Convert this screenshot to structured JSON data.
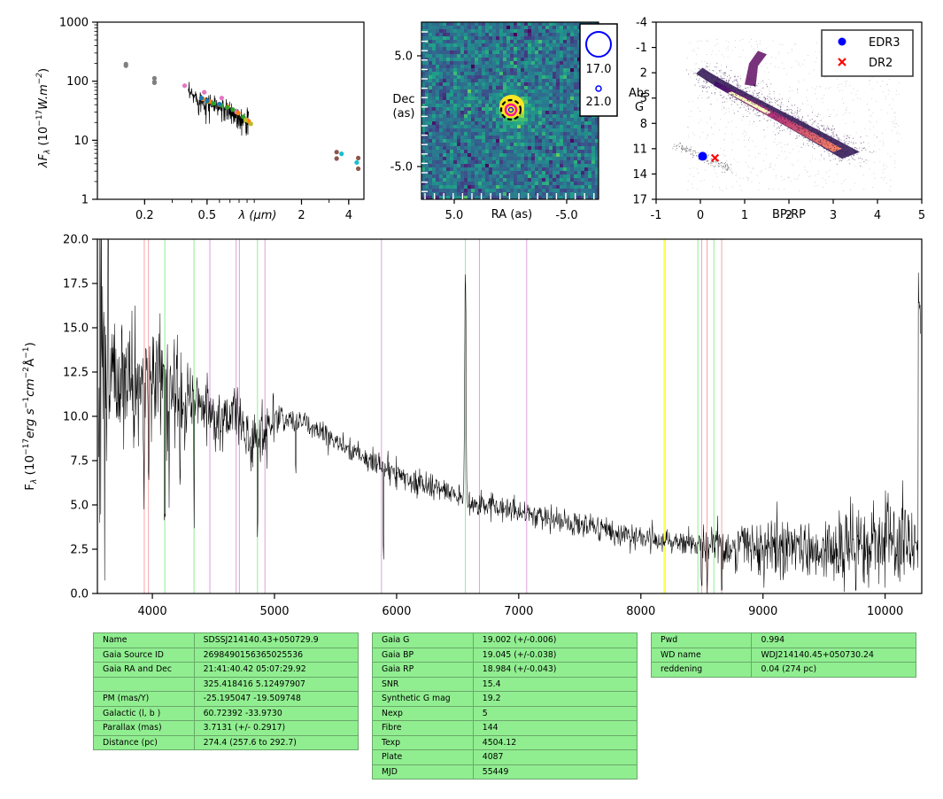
{
  "chart_data": [
    {
      "type": "scatter",
      "panel": "sed",
      "xlabel": "λ (μm)",
      "ylabel": "λF_λ (10^-17 W.m^-2)",
      "x_scale": "log",
      "y_scale": "log",
      "ylim": [
        1,
        1000
      ],
      "xlim": [
        0.1,
        5
      ],
      "x_ticks": [
        "0.2",
        "0.5",
        "2",
        "4"
      ],
      "y_ticks": [
        "1",
        "10",
        "100",
        "1000"
      ],
      "series": [
        {
          "color": "#808080",
          "points": [
            [
              0.152,
              195
            ],
            [
              0.152,
              183
            ],
            [
              0.231,
              112
            ],
            [
              0.231,
              97
            ],
            [
              0.231,
              94
            ]
          ]
        },
        {
          "color": "#e377c2",
          "points": [
            [
              0.36,
              84
            ],
            [
              0.48,
              65
            ],
            [
              0.62,
              52
            ],
            [
              0.77,
              30
            ],
            [
              0.9,
              22
            ]
          ]
        },
        {
          "color": "#ff7f0e",
          "points": [
            [
              0.47,
              50
            ],
            [
              0.52,
              45
            ],
            [
              0.6,
              40
            ],
            [
              0.68,
              37
            ],
            [
              0.79,
              29
            ],
            [
              0.92,
              21
            ]
          ]
        },
        {
          "color": "#2ca02c",
          "points": [
            [
              0.5,
              46
            ],
            [
              0.55,
              42
            ],
            [
              0.62,
              39
            ],
            [
              0.67,
              36
            ],
            [
              0.73,
              33
            ],
            [
              0.85,
              25
            ]
          ]
        },
        {
          "color": "#1f77b4",
          "points": [
            [
              0.46,
              52
            ],
            [
              0.5,
              47
            ],
            [
              0.6,
              41
            ]
          ]
        },
        {
          "color": "#bcbd22",
          "points": [
            [
              0.88,
              22
            ],
            [
              0.95,
              19
            ]
          ]
        },
        {
          "color": "#8c564b",
          "points": [
            [
              3.35,
              6.3
            ],
            [
              3.35,
              4.9
            ],
            [
              4.6,
              5.0
            ],
            [
              4.6,
              3.3
            ]
          ]
        },
        {
          "color": "#17becf",
          "points": [
            [
              3.6,
              5.9
            ],
            [
              4.5,
              4.2
            ]
          ]
        }
      ],
      "spectrum_segment": {
        "color": "#000000",
        "x_range": [
          0.38,
          0.92
        ]
      }
    },
    {
      "type": "heatmap",
      "panel": "image",
      "xlabel": "RA (as)",
      "ylabel": "Dec\n(as)",
      "x_ticks": [
        "5.0",
        "-5.0"
      ],
      "y_ticks": [
        "5.0",
        "-5.0"
      ],
      "legend": [
        {
          "label": "17.0",
          "marker": "large-blue-circle"
        },
        {
          "label": "21.0",
          "marker": "small-blue-circle"
        }
      ],
      "colormap": "viridis"
    },
    {
      "type": "scatter",
      "panel": "hr_diagram",
      "xlabel": "BP-RP",
      "ylabel": "Abs\nG",
      "xlim": [
        -1,
        5
      ],
      "ylim": [
        17,
        -4
      ],
      "x_ticks": [
        "-1",
        "0",
        "1",
        "2",
        "3",
        "4",
        "5"
      ],
      "y_ticks": [
        "-4",
        "-1",
        "2",
        "5",
        "8",
        "11",
        "14",
        "17"
      ],
      "series": [
        {
          "name": "EDR3",
          "color": "#0000ff",
          "marker": "circle",
          "x": [
            0.05
          ],
          "y": [
            11.9
          ]
        },
        {
          "name": "DR2",
          "color": "#ff0000",
          "marker": "x",
          "x": [
            0.33
          ],
          "y": [
            12.1
          ]
        }
      ],
      "legend_position": "top-right"
    },
    {
      "type": "line",
      "panel": "spectrum",
      "xlabel": "",
      "ylabel": "F_λ (10^-17 erg s^-1 cm^-2 Å^-1)",
      "xlim": [
        3550,
        10300
      ],
      "ylim": [
        0,
        20
      ],
      "x_ticks": [
        "4000",
        "5000",
        "6000",
        "7000",
        "8000",
        "9000",
        "10000"
      ],
      "y_ticks": [
        "0.0",
        "2.5",
        "5.0",
        "7.5",
        "10.0",
        "12.5",
        "15.0",
        "17.5",
        "20.0"
      ],
      "continuum_knots": {
        "x": [
          3600,
          3800,
          4000,
          4200,
          4400,
          4550,
          4700,
          4820,
          4900,
          5000,
          5200,
          5400,
          5600,
          5800,
          6000,
          6200,
          6400,
          6600,
          6800,
          7000,
          7200,
          7500,
          8000,
          8500,
          9000,
          9500,
          10000,
          10280
        ],
        "y": [
          12.8,
          12.3,
          11.9,
          11.4,
          10.9,
          9.5,
          10.1,
          8.2,
          9.3,
          9.9,
          9.7,
          9.0,
          8.2,
          7.5,
          6.7,
          6.2,
          5.8,
          5.1,
          4.9,
          4.6,
          4.3,
          3.8,
          3.1,
          2.8,
          2.6,
          2.4,
          2.6,
          2.9
        ]
      },
      "emission_lines": [
        {
          "x": 6563,
          "peak": 18.2
        }
      ],
      "vertical_lines": [
        {
          "x": 3934,
          "color": "#f4a6a6"
        },
        {
          "x": 3968,
          "color": "#f4a6a6"
        },
        {
          "x": 4102,
          "color": "#90ee90"
        },
        {
          "x": 4341,
          "color": "#90ee90"
        },
        {
          "x": 4471,
          "color": "#dda0dd"
        },
        {
          "x": 4686,
          "color": "#dda0dd"
        },
        {
          "x": 4713,
          "color": "#dda0dd"
        },
        {
          "x": 4861,
          "color": "#90ee90"
        },
        {
          "x": 4922,
          "color": "#dda0dd"
        },
        {
          "x": 5876,
          "color": "#dda0dd"
        },
        {
          "x": 6563,
          "color": "#90ee90"
        },
        {
          "x": 6678,
          "color": "#dda0dd"
        },
        {
          "x": 7065,
          "color": "#dda0dd"
        },
        {
          "x": 8190,
          "color": "#ffff00"
        },
        {
          "x": 8200,
          "color": "#ffff00"
        },
        {
          "x": 8467,
          "color": "#90ee90"
        },
        {
          "x": 8498,
          "color": "#f4a6a6"
        },
        {
          "x": 8542,
          "color": "#f4a6a6"
        },
        {
          "x": 8598,
          "color": "#90ee90"
        },
        {
          "x": 8662,
          "color": "#f4a6a6"
        }
      ]
    }
  ],
  "axis_titles": {
    "sed_x": "λ (μm)",
    "image_x": "RA (as)",
    "image_y1": "Dec",
    "image_y2": "(as)",
    "hr_x": "BP-RP",
    "hr_y1": "Abs",
    "hr_y2": "G"
  },
  "tables": {
    "table1": [
      [
        "Name",
        "SDSSJ214140.43+050729.9"
      ],
      [
        "Gaia Source ID",
        "2698490156365025536"
      ],
      [
        "Gaia RA and Dec",
        "21:41:40.42    05:07:29.92"
      ],
      [
        "",
        "325.418416    5.12497907"
      ],
      [
        "PM (mas/Y)",
        "-25.195047    -19.509748"
      ],
      [
        "Galactic (l, b )",
        "60.72392    -33.9730"
      ],
      [
        "Parallax (mas)",
        "3.7131 (+/- 0.2917)"
      ],
      [
        "Distance (pc)",
        "274.4 (257.6 to 292.7)"
      ]
    ],
    "table2": [
      [
        "Gaia G",
        "19.002 (+/-0.006)"
      ],
      [
        "Gaia BP",
        "19.045 (+/-0.038)"
      ],
      [
        "Gaia RP",
        "18.984 (+/-0.043)"
      ],
      [
        "SNR",
        "15.4"
      ],
      [
        "Synthetic G mag",
        "19.2"
      ],
      [
        "Nexp",
        "5"
      ],
      [
        "Fibre",
        "144"
      ],
      [
        "Texp",
        "4504.12"
      ],
      [
        "Plate",
        "4087"
      ],
      [
        "MJD",
        "55449"
      ]
    ],
    "table3": [
      [
        "Pwd",
        "0.994"
      ],
      [
        "WD name",
        "WDJ214140.45+050730.24"
      ],
      [
        "reddening",
        "0.04 (274 pc)"
      ]
    ]
  }
}
